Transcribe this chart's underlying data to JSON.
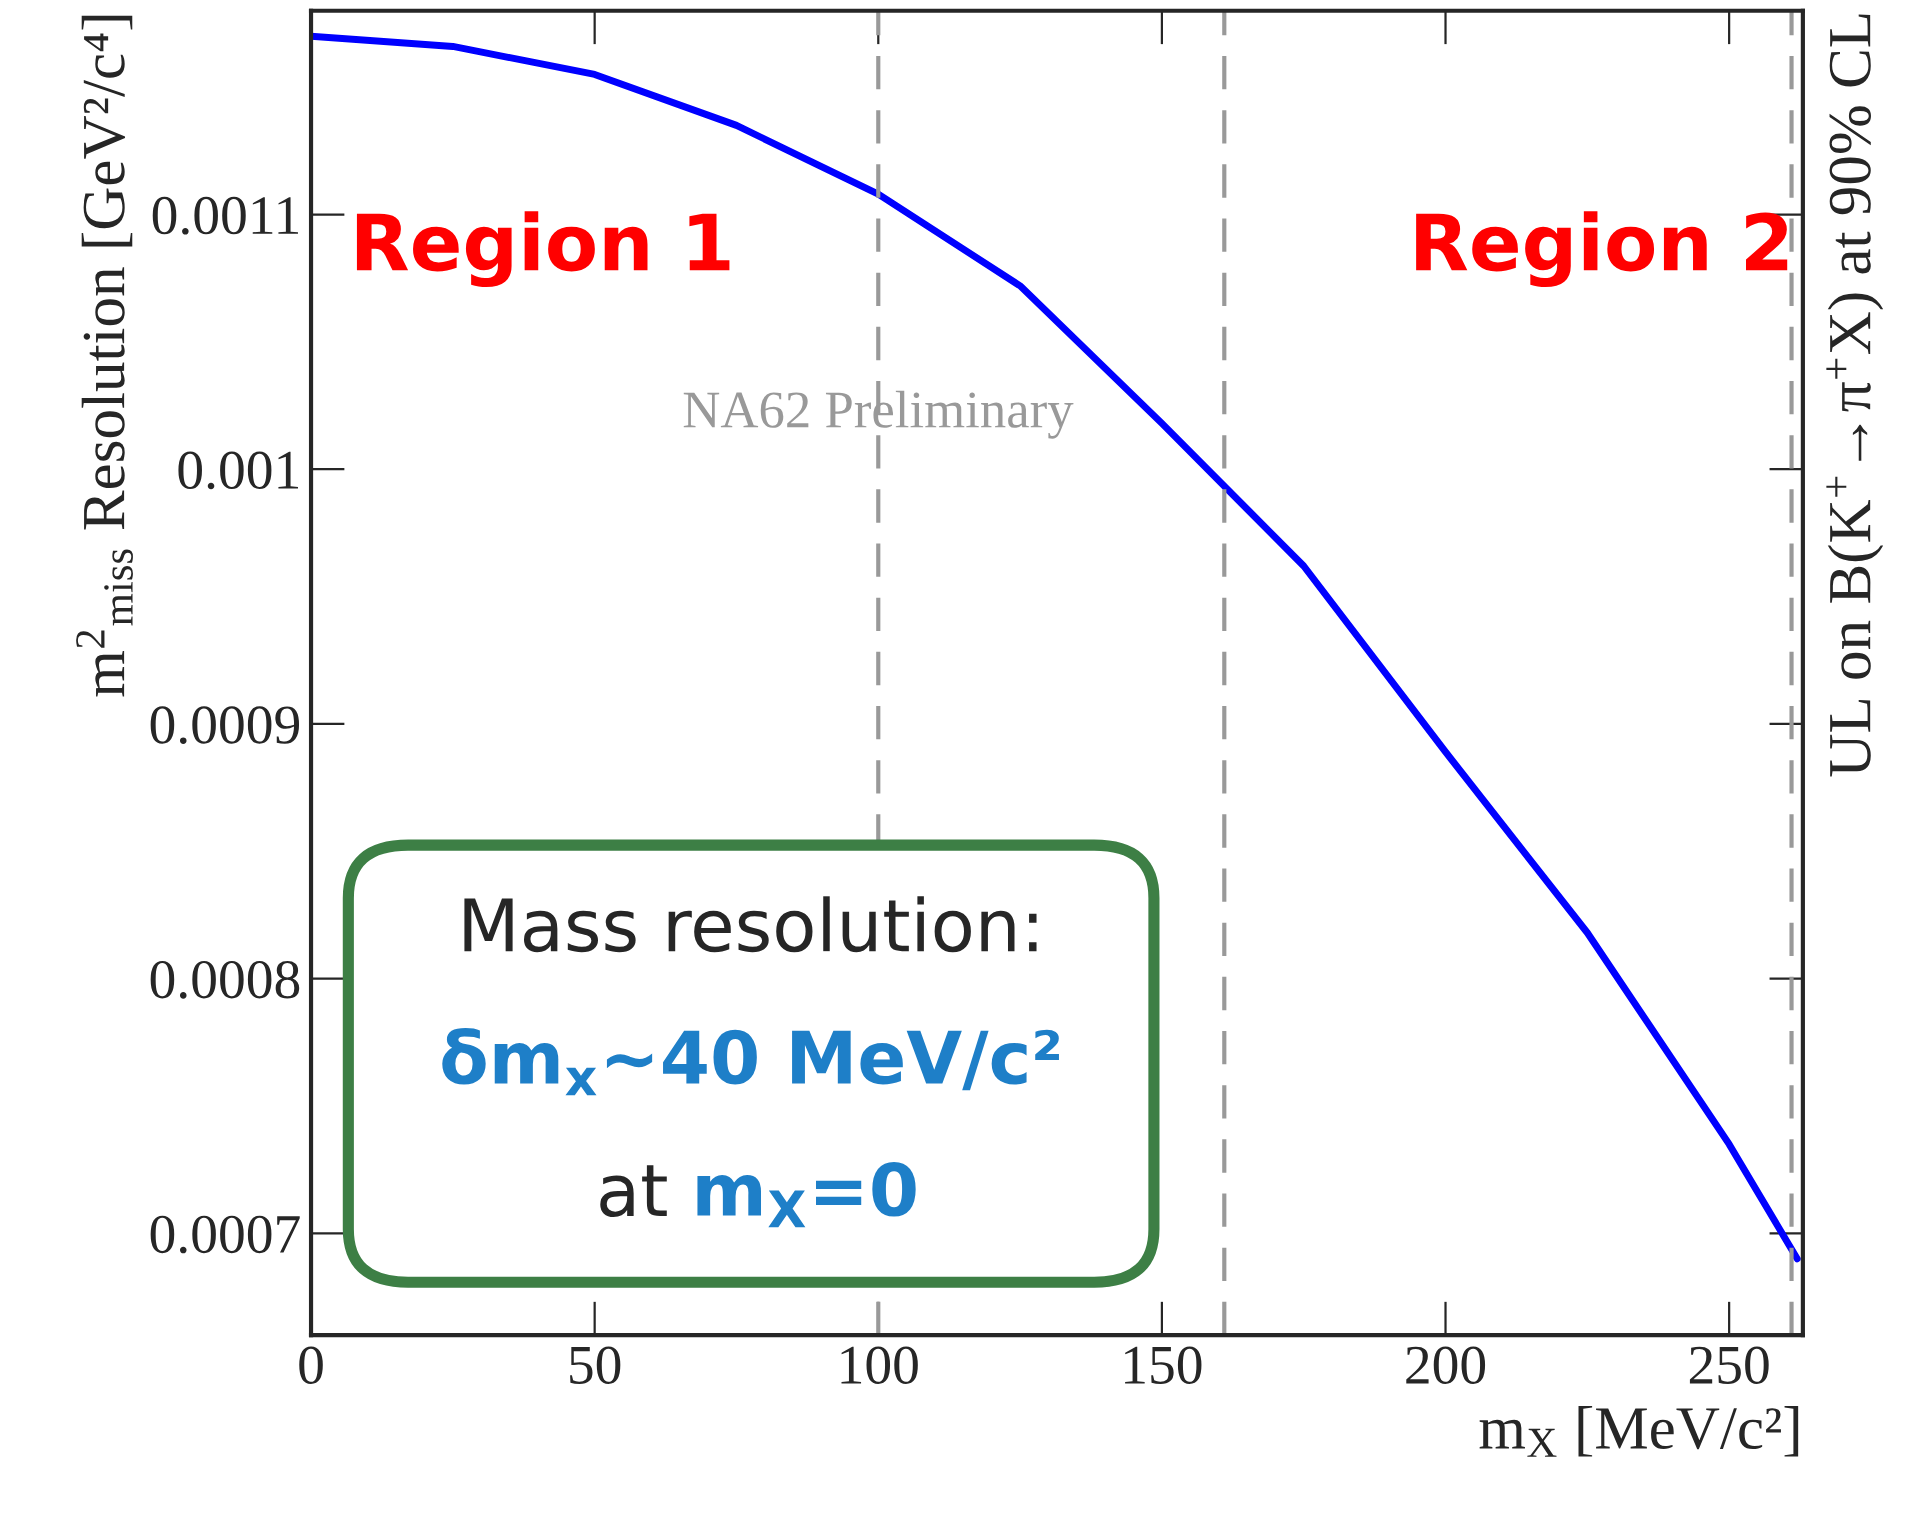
{
  "chart_data": {
    "type": "line",
    "xlabel": "m$_{X}$ [MeV/c²]",
    "ylabel": "m$^{2}$$_{miss}$ Resolution [GeV²/c⁴]",
    "y2label": "UL on B(K$^{+}$→π$^{+}$X) at 90% CL",
    "x": [
      0,
      25,
      50,
      75,
      100,
      125,
      150,
      175,
      200,
      225,
      250,
      262
    ],
    "series": [
      {
        "color": "#0000ff",
        "values": [
          0.00117,
          0.001166,
          0.001155,
          0.001135,
          0.001108,
          0.001072,
          0.001018,
          0.000962,
          0.000889,
          0.000818,
          0.000735,
          0.00069
        ]
      }
    ],
    "xlim": [
      0,
      263
    ],
    "ylim": [
      0.00066,
      0.00118
    ],
    "xticks": [
      0,
      50,
      100,
      150,
      200,
      250
    ],
    "yticks": [
      0.0007,
      0.0008,
      0.0009,
      0.001,
      0.0011
    ],
    "ref_lines": [
      {
        "axis": "x",
        "value": 100,
        "color": "#999999",
        "line_style": "dashed"
      },
      {
        "axis": "x",
        "value": 161,
        "color": "#999999",
        "line_style": "dashed"
      },
      {
        "axis": "x",
        "value": 261,
        "color": "#999999",
        "line_style": "dashed"
      }
    ],
    "annotations": [
      "Region 1",
      "Region 2",
      "NA62 Preliminary",
      "Mass resolution:",
      "δm$_{x}$~40 MeV/c²",
      "at",
      "m$_{X}$=0"
    ],
    "grid": false,
    "legend": false,
    "marker": "none",
    "line_style": "solid"
  }
}
